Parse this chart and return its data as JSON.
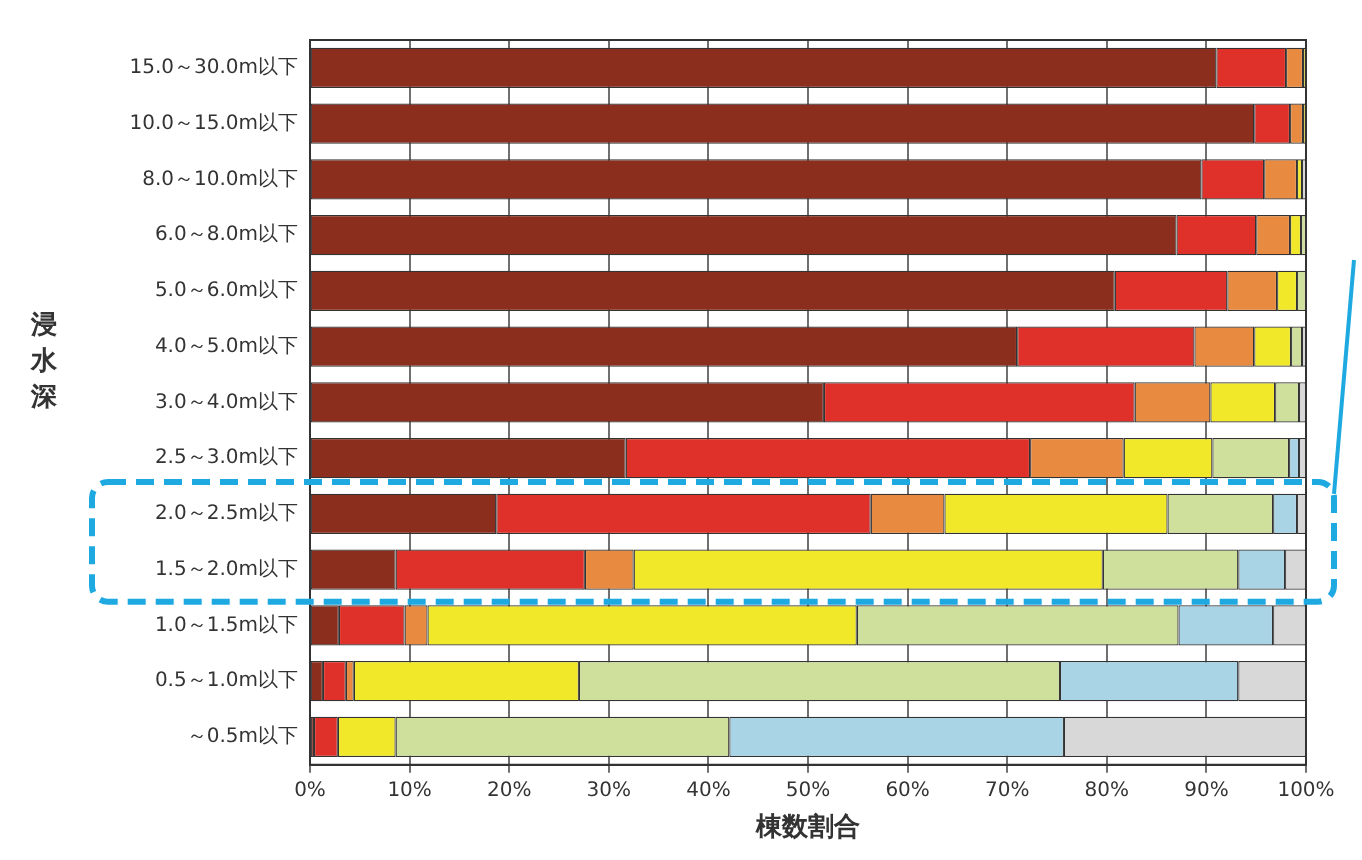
{
  "chart_data": {
    "type": "bar",
    "orientation": "horizontal",
    "stacked": true,
    "xlabel": "棟数割合",
    "ylabel": "浸水深",
    "categories": [
      "15.0～30.0m以下",
      "10.0～15.0m以下",
      "8.0～10.0m以下",
      "6.0～8.0m以下",
      "5.0～6.0m以下",
      "4.0～5.0m以下",
      "3.0～4.0m以下",
      "2.5～3.0m以下",
      "2.0～2.5m以下",
      "1.5～2.0m以下",
      "1.0～1.5m以下",
      "0.5～1.0m以下",
      "～0.5m以下"
    ],
    "series": [
      {
        "color": "#8b2e1e",
        "values": [
          91,
          94.8,
          89.5,
          87,
          80.8,
          71,
          51.6,
          31.7,
          18.7,
          8.6,
          2.9,
          1.3,
          0.4
        ]
      },
      {
        "color": "#e0302a",
        "values": [
          7,
          3.6,
          6.3,
          8,
          11.3,
          17.8,
          31.2,
          40.6,
          37.6,
          19,
          6.6,
          2.3,
          2.4
        ]
      },
      {
        "color": "#e88b40",
        "values": [
          1.7,
          1.3,
          3.3,
          3.4,
          5,
          6,
          7.6,
          9.4,
          7.4,
          4.9,
          2.3,
          0.8,
          0
        ]
      },
      {
        "color": "#f2e82a",
        "values": [
          0.3,
          0.3,
          0.5,
          1.1,
          2,
          3.7,
          6.5,
          8.9,
          22.4,
          47.1,
          43.1,
          22.6,
          5.8
        ]
      },
      {
        "color": "#cfdf9c",
        "values": [
          0,
          0,
          0,
          0.5,
          0.9,
          1.1,
          2.4,
          7.7,
          10.6,
          13.6,
          32.3,
          48.3,
          33.5
        ]
      },
      {
        "color": "#a9d4e6",
        "values": [
          0,
          0,
          0,
          0,
          0,
          0,
          0,
          1,
          2.4,
          4.7,
          9.5,
          17.9,
          33.6
        ]
      },
      {
        "color": "#d8d8d8",
        "values": [
          0,
          0,
          0.4,
          0,
          0,
          0.4,
          0.7,
          0.7,
          0.9,
          2.1,
          3.3,
          6.8,
          24.3
        ]
      }
    ],
    "xlim": [
      0,
      100
    ],
    "xticks": [
      {
        "value": 0,
        "label": "0%"
      },
      {
        "value": 10,
        "label": "10%"
      },
      {
        "value": 20,
        "label": "20%"
      },
      {
        "value": 30,
        "label": "30%"
      },
      {
        "value": 40,
        "label": "40%"
      },
      {
        "value": 50,
        "label": "50%"
      },
      {
        "value": 60,
        "label": "60%"
      },
      {
        "value": 70,
        "label": "70%"
      },
      {
        "value": 80,
        "label": "80%"
      },
      {
        "value": 90,
        "label": "90%"
      },
      {
        "value": 100,
        "label": "100%"
      }
    ],
    "grid": "x",
    "legend": false
  }
}
